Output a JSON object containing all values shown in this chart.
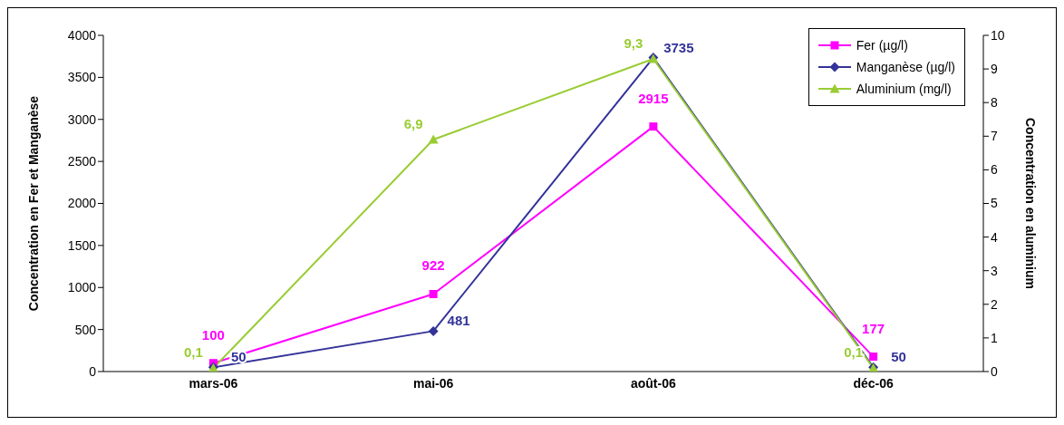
{
  "chart_data": {
    "type": "line",
    "categories": [
      "mars-06",
      "mai-06",
      "août-06",
      "déc-06"
    ],
    "ylabel": "Concentration en Fer et Manganèse",
    "y2label": "Concentration en aluminium",
    "ylim": [
      0,
      4000
    ],
    "yticks": [
      0,
      500,
      1000,
      1500,
      2000,
      2500,
      3000,
      3500,
      4000
    ],
    "y2lim": [
      0,
      10
    ],
    "y2ticks": [
      0,
      1,
      2,
      3,
      4,
      5,
      6,
      7,
      8,
      9,
      10
    ],
    "grid": false,
    "legend": "top right",
    "line_style": "solid",
    "series": [
      {
        "name": "Fer (µg/l)",
        "color": "#ff00ff",
        "marker": "square",
        "values": [
          100,
          922,
          2915,
          177
        ],
        "value_labels": [
          "100",
          "922",
          "2915",
          "177"
        ]
      },
      {
        "name": "Manganèse (µg/l)",
        "color": "#333399",
        "marker": "diamond",
        "values": [
          50,
          481,
          3735,
          50
        ],
        "value_labels": [
          "50",
          "481",
          "3735",
          "50"
        ]
      },
      {
        "name": "Aluminium (mg/l)",
        "color": "#99cc33",
        "marker": "triangle",
        "axis": "y2",
        "values": [
          0.1,
          6.9,
          9.3,
          0.1
        ],
        "value_labels": [
          "0,1",
          "6,9",
          "9,3",
          "0,1"
        ]
      }
    ]
  }
}
